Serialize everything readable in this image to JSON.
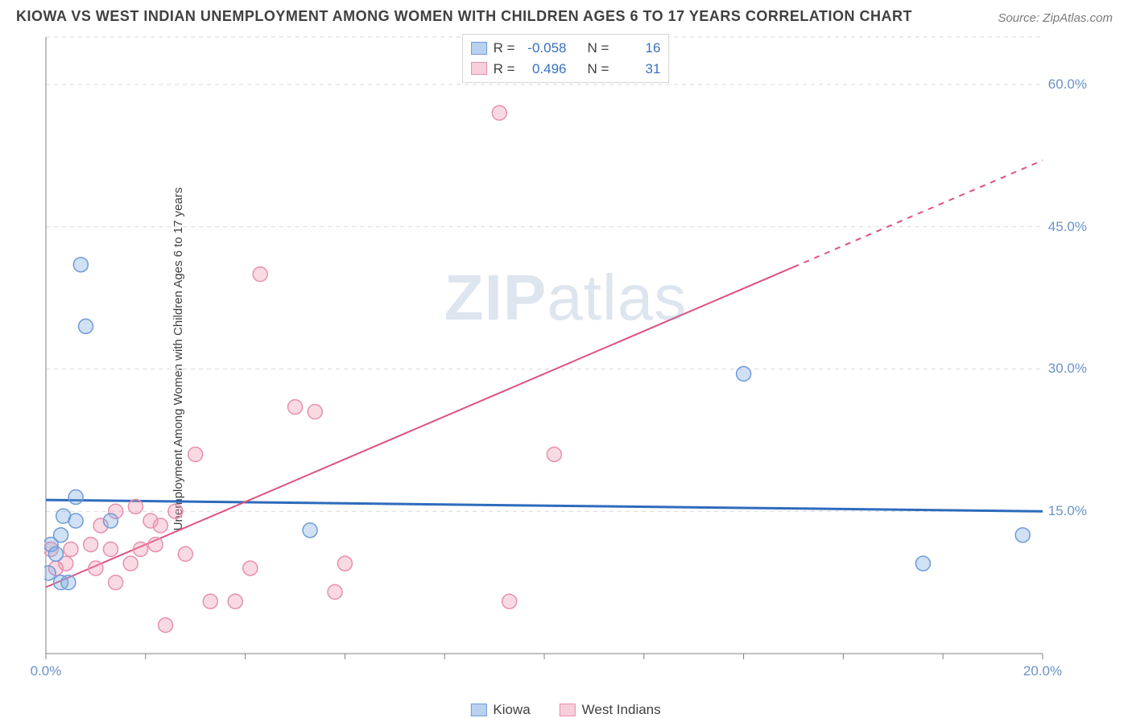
{
  "title": "KIOWA VS WEST INDIAN UNEMPLOYMENT AMONG WOMEN WITH CHILDREN AGES 6 TO 17 YEARS CORRELATION CHART",
  "source": "Source: ZipAtlas.com",
  "ylabel": "Unemployment Among Women with Children Ages 6 to 17 years",
  "watermark_A": "ZIP",
  "watermark_B": "atlas",
  "chart": {
    "type": "scatter",
    "background_color": "#ffffff",
    "grid_color": "#d9d9d9",
    "axis_color": "#808080",
    "tick_label_color": "#6a93c9",
    "xlim": [
      0,
      20
    ],
    "ylim": [
      0,
      65
    ],
    "x_ticks": [
      0,
      2,
      4,
      6,
      8,
      10,
      12,
      14,
      16,
      18,
      20
    ],
    "x_tick_labels": {
      "0": "0.0%",
      "20": "20.0%"
    },
    "y_gridlines": [
      15,
      30,
      45,
      60,
      65
    ],
    "y_tick_labels": {
      "15": "15.0%",
      "30": "30.0%",
      "45": "45.0%",
      "60": "60.0%"
    },
    "marker_radius": 9,
    "marker_stroke_width": 1.5,
    "series": [
      {
        "name": "Kiowa",
        "legend_label": "Kiowa",
        "fill_color": "rgba(122,168,224,0.35)",
        "stroke_color": "#6f9bd8",
        "swatch_fill": "#b9d1ef",
        "swatch_border": "#6f9bd8",
        "R": "-0.058",
        "N": "16",
        "trend": {
          "m": -0.06,
          "b": 16.2,
          "color": "#2e6bbd",
          "width": 3
        },
        "points": [
          {
            "x": 0.05,
            "y": 8.5
          },
          {
            "x": 0.1,
            "y": 11.5
          },
          {
            "x": 0.3,
            "y": 7.5
          },
          {
            "x": 0.2,
            "y": 10.5
          },
          {
            "x": 0.45,
            "y": 7.5
          },
          {
            "x": 0.3,
            "y": 12.5
          },
          {
            "x": 0.35,
            "y": 14.5
          },
          {
            "x": 0.6,
            "y": 16.5
          },
          {
            "x": 0.6,
            "y": 14.0
          },
          {
            "x": 1.3,
            "y": 14.0
          },
          {
            "x": 5.3,
            "y": 13.0
          },
          {
            "x": 0.8,
            "y": 34.5
          },
          {
            "x": 0.7,
            "y": 41.0
          },
          {
            "x": 14.0,
            "y": 29.5
          },
          {
            "x": 17.6,
            "y": 9.5
          },
          {
            "x": 19.6,
            "y": 12.5
          }
        ]
      },
      {
        "name": "West Indians",
        "legend_label": "West Indians",
        "fill_color": "rgba(238,150,175,0.35)",
        "stroke_color": "#e78fb0",
        "swatch_fill": "#f6cfdb",
        "swatch_border": "#e78fb0",
        "R": "0.496",
        "N": "31",
        "trend": {
          "m": 2.25,
          "b": 7.0,
          "solid_until_x": 15.0,
          "color": "#e0527f",
          "width": 2
        },
        "points": [
          {
            "x": 0.1,
            "y": 11.0
          },
          {
            "x": 0.2,
            "y": 9.0
          },
          {
            "x": 0.4,
            "y": 9.5
          },
          {
            "x": 0.5,
            "y": 11.0
          },
          {
            "x": 0.9,
            "y": 11.5
          },
          {
            "x": 1.0,
            "y": 9.0
          },
          {
            "x": 1.1,
            "y": 13.5
          },
          {
            "x": 1.3,
            "y": 11.0
          },
          {
            "x": 1.4,
            "y": 15.0
          },
          {
            "x": 1.4,
            "y": 7.5
          },
          {
            "x": 1.7,
            "y": 9.5
          },
          {
            "x": 1.8,
            "y": 15.5
          },
          {
            "x": 1.9,
            "y": 11.0
          },
          {
            "x": 2.1,
            "y": 14.0
          },
          {
            "x": 2.2,
            "y": 11.5
          },
          {
            "x": 2.3,
            "y": 13.5
          },
          {
            "x": 2.4,
            "y": 3.0
          },
          {
            "x": 2.6,
            "y": 15.0
          },
          {
            "x": 2.8,
            "y": 10.5
          },
          {
            "x": 3.0,
            "y": 21.0
          },
          {
            "x": 3.3,
            "y": 5.5
          },
          {
            "x": 3.8,
            "y": 5.5
          },
          {
            "x": 4.1,
            "y": 9.0
          },
          {
            "x": 4.3,
            "y": 40.0
          },
          {
            "x": 5.0,
            "y": 26.0
          },
          {
            "x": 5.4,
            "y": 25.5
          },
          {
            "x": 5.8,
            "y": 6.5
          },
          {
            "x": 6.0,
            "y": 9.5
          },
          {
            "x": 9.1,
            "y": 57.0
          },
          {
            "x": 9.3,
            "y": 5.5
          },
          {
            "x": 10.2,
            "y": 21.0
          }
        ]
      }
    ]
  },
  "legend_top_labels": {
    "R": "R =",
    "N": "N ="
  }
}
